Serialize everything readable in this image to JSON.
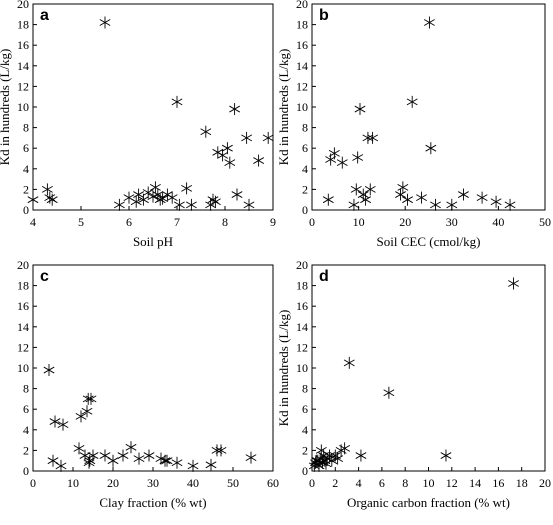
{
  "chart_data": [
    {
      "panel": "a",
      "type": "scatter",
      "marker": "asterisk",
      "xlabel": "Soil pH",
      "ylabel": "Kd in hundreds (L/kg)",
      "xlim": [
        4,
        9
      ],
      "ylim": [
        0,
        20
      ],
      "xticks": [
        4,
        5,
        6,
        7,
        8,
        9
      ],
      "yticks": [
        0,
        2,
        4,
        6,
        8,
        10,
        12,
        14,
        16,
        18,
        20
      ],
      "grid": false,
      "points": [
        [
          4.0,
          1.0
        ],
        [
          4.3,
          2.0
        ],
        [
          4.35,
          1.2
        ],
        [
          4.4,
          1.0
        ],
        [
          5.5,
          18.2
        ],
        [
          5.8,
          0.5
        ],
        [
          6.0,
          1.2
        ],
        [
          6.15,
          0.8
        ],
        [
          6.2,
          1.5
        ],
        [
          6.3,
          1.0
        ],
        [
          6.4,
          1.7
        ],
        [
          6.5,
          1.3
        ],
        [
          6.55,
          2.2
        ],
        [
          6.6,
          1.5
        ],
        [
          6.65,
          1.0
        ],
        [
          6.7,
          1.1
        ],
        [
          6.8,
          1.5
        ],
        [
          6.9,
          1.2
        ],
        [
          7.0,
          10.5
        ],
        [
          7.05,
          0.5
        ],
        [
          7.2,
          2.1
        ],
        [
          7.3,
          0.5
        ],
        [
          7.6,
          7.6
        ],
        [
          7.7,
          0.5
        ],
        [
          7.75,
          1.0
        ],
        [
          7.8,
          0.8
        ],
        [
          7.85,
          5.6
        ],
        [
          7.95,
          5.3
        ],
        [
          8.05,
          6.0
        ],
        [
          8.1,
          4.6
        ],
        [
          8.2,
          9.8
        ],
        [
          8.25,
          1.5
        ],
        [
          8.45,
          7.0
        ],
        [
          8.5,
          0.5
        ],
        [
          8.7,
          4.8
        ],
        [
          8.9,
          7.0
        ]
      ]
    },
    {
      "panel": "b",
      "type": "scatter",
      "marker": "asterisk",
      "xlabel": "Soil CEC (cmol/kg)",
      "ylabel": "Kd in hundreds (L/kg)",
      "xlim": [
        0,
        50
      ],
      "ylim": [
        0,
        20
      ],
      "xticks": [
        0,
        10,
        20,
        30,
        40,
        50
      ],
      "yticks": [
        0,
        2,
        4,
        6,
        8,
        10,
        12,
        14,
        16,
        18,
        20
      ],
      "grid": false,
      "points": [
        [
          3.5,
          1.0
        ],
        [
          4.0,
          4.9
        ],
        [
          4.8,
          5.5
        ],
        [
          6.5,
          4.6
        ],
        [
          9.0,
          0.5
        ],
        [
          9.5,
          2.0
        ],
        [
          9.8,
          5.1
        ],
        [
          10.3,
          9.8
        ],
        [
          11.0,
          1.5
        ],
        [
          11.5,
          1.0
        ],
        [
          12.0,
          7.0
        ],
        [
          12.5,
          2.0
        ],
        [
          13.0,
          7.0
        ],
        [
          19.0,
          1.5
        ],
        [
          19.5,
          2.2
        ],
        [
          20.5,
          1.0
        ],
        [
          21.5,
          10.5
        ],
        [
          23.5,
          1.2
        ],
        [
          25.2,
          18.2
        ],
        [
          25.5,
          6.0
        ],
        [
          26.5,
          0.5
        ],
        [
          30.0,
          0.5
        ],
        [
          32.5,
          1.5
        ],
        [
          36.5,
          1.2
        ],
        [
          39.5,
          0.8
        ],
        [
          42.5,
          0.5
        ]
      ]
    },
    {
      "panel": "c",
      "type": "scatter",
      "marker": "asterisk",
      "xlabel": "Clay fraction (% wt)",
      "ylabel": "",
      "xlim": [
        0,
        60
      ],
      "ylim": [
        0,
        20
      ],
      "xticks": [
        0,
        10,
        20,
        30,
        40,
        50,
        60
      ],
      "yticks": [
        0,
        2,
        4,
        6,
        8,
        10,
        12,
        14,
        16,
        18,
        20
      ],
      "grid": false,
      "points": [
        [
          4.0,
          9.8
        ],
        [
          5.0,
          1.0
        ],
        [
          5.5,
          4.8
        ],
        [
          7.0,
          0.5
        ],
        [
          7.5,
          4.5
        ],
        [
          11.5,
          2.2
        ],
        [
          12.0,
          5.3
        ],
        [
          13.0,
          1.5
        ],
        [
          13.5,
          5.8
        ],
        [
          13.8,
          7.0
        ],
        [
          14.0,
          0.8
        ],
        [
          14.2,
          1.0
        ],
        [
          14.5,
          7.0
        ],
        [
          15.0,
          1.5
        ],
        [
          18.0,
          1.5
        ],
        [
          20.0,
          1.0
        ],
        [
          22.5,
          1.5
        ],
        [
          24.5,
          2.3
        ],
        [
          26.5,
          1.2
        ],
        [
          29.0,
          1.5
        ],
        [
          32.0,
          1.2
        ],
        [
          33.0,
          1.0
        ],
        [
          33.5,
          1.0
        ],
        [
          36.0,
          0.8
        ],
        [
          40.0,
          0.5
        ],
        [
          44.5,
          0.6
        ],
        [
          46.0,
          2.0
        ],
        [
          47.0,
          2.0
        ],
        [
          54.5,
          1.3
        ]
      ]
    },
    {
      "panel": "d",
      "type": "scatter",
      "marker": "asterisk",
      "xlabel": "Organic carbon fraction (% wt)",
      "ylabel": "Kd in hundreds (L/kg)",
      "xlim": [
        0,
        20
      ],
      "ylim": [
        0,
        20
      ],
      "xticks": [
        0,
        2,
        4,
        6,
        8,
        10,
        12,
        14,
        16,
        18,
        20
      ],
      "yticks": [
        0,
        2,
        4,
        6,
        8,
        10,
        12,
        14,
        16,
        18,
        20
      ],
      "grid": false,
      "points": [
        [
          0.2,
          0.5
        ],
        [
          0.3,
          0.8
        ],
        [
          0.4,
          1.0
        ],
        [
          0.5,
          1.0
        ],
        [
          0.6,
          0.5
        ],
        [
          0.7,
          1.2
        ],
        [
          0.8,
          2.0
        ],
        [
          0.9,
          0.8
        ],
        [
          1.0,
          1.5
        ],
        [
          1.1,
          1.0
        ],
        [
          1.2,
          0.7
        ],
        [
          1.3,
          1.2
        ],
        [
          1.5,
          1.5
        ],
        [
          1.7,
          1.0
        ],
        [
          2.0,
          1.5
        ],
        [
          2.2,
          1.2
        ],
        [
          2.5,
          2.0
        ],
        [
          2.8,
          2.2
        ],
        [
          3.2,
          10.5
        ],
        [
          4.2,
          1.5
        ],
        [
          6.6,
          7.6
        ],
        [
          11.5,
          1.5
        ],
        [
          17.3,
          18.2
        ]
      ]
    }
  ]
}
